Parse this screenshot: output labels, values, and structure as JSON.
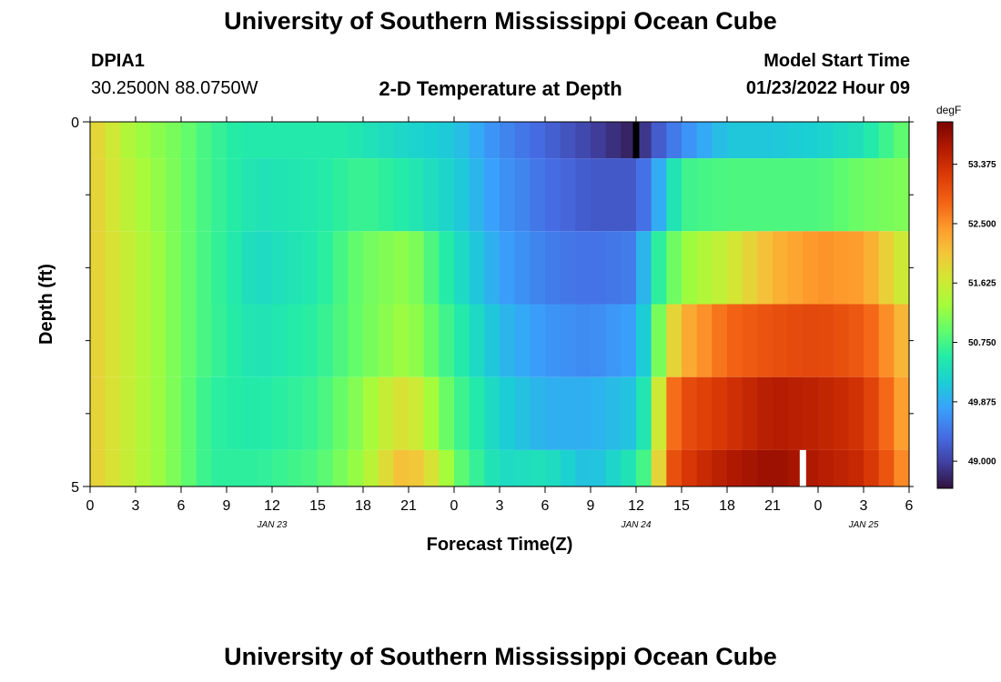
{
  "header": {
    "title": "University of Southern Mississippi Ocean Cube",
    "station": "DPIA1",
    "coords": "30.2500N  88.0750W",
    "start_label": "Model Start Time",
    "start_value": "01/23/2022 Hour 09"
  },
  "footer": {
    "title": "University of Southern Mississippi Ocean Cube"
  },
  "chart_data": {
    "type": "heatmap",
    "title": "2-D Temperature at Depth",
    "xlabel": "Forecast Time(Z)",
    "ylabel": "Depth (ft)",
    "colorbar_label": "degF",
    "colorbar_ticks": [
      49.0,
      49.875,
      50.75,
      51.625,
      52.5,
      53.375
    ],
    "colorbar_tick_labels": [
      "49.000",
      "49.875",
      "50.750",
      "51.625",
      "52.500",
      "53.375"
    ],
    "value_range": [
      48.6,
      54.0
    ],
    "x_ticks": [
      0,
      3,
      6,
      9,
      12,
      15,
      18,
      21,
      24,
      27,
      30,
      33,
      36,
      39,
      42,
      45,
      48,
      51,
      54
    ],
    "x_tick_labels": [
      "0",
      "3",
      "6",
      "9",
      "12",
      "15",
      "18",
      "21",
      "0",
      "3",
      "6",
      "9",
      "12",
      "15",
      "18",
      "21",
      "0",
      "3",
      "6"
    ],
    "x_range": [
      0,
      54
    ],
    "date_labels": [
      {
        "hour": 12,
        "text": "JAN 23"
      },
      {
        "hour": 36,
        "text": "JAN 24"
      },
      {
        "hour": 51,
        "text": "JAN 25"
      }
    ],
    "y_range": [
      0,
      5
    ],
    "y_tick_labels": [
      "0",
      "5"
    ],
    "layer_bounds": [
      0,
      0.5,
      1.5,
      2.5,
      3.5,
      4.5,
      5
    ],
    "layer_profiles": [
      [
        [
          0,
          52.0
        ],
        [
          3,
          51.3
        ],
        [
          6,
          51.0
        ],
        [
          8,
          50.7
        ],
        [
          10,
          50.5
        ],
        [
          14,
          50.5
        ],
        [
          17,
          50.5
        ],
        [
          20,
          50.3
        ],
        [
          24,
          50.1
        ],
        [
          27,
          49.6
        ],
        [
          30,
          49.3
        ],
        [
          33,
          49.0
        ],
        [
          35,
          48.8
        ],
        [
          36,
          48.7
        ],
        [
          37,
          49.1
        ],
        [
          39,
          49.6
        ],
        [
          42,
          50.1
        ],
        [
          45,
          50.1
        ],
        [
          48,
          50.2
        ],
        [
          51,
          50.4
        ],
        [
          53,
          50.8
        ],
        [
          54,
          51.0
        ]
      ],
      [
        [
          0,
          52.0
        ],
        [
          3,
          51.4
        ],
        [
          6,
          51.0
        ],
        [
          8,
          50.7
        ],
        [
          11,
          50.4
        ],
        [
          15,
          50.5
        ],
        [
          18,
          50.7
        ],
        [
          21,
          50.5
        ],
        [
          24,
          50.2
        ],
        [
          27,
          49.7
        ],
        [
          30,
          49.4
        ],
        [
          33,
          49.2
        ],
        [
          36,
          49.2
        ],
        [
          37,
          49.6
        ],
        [
          39,
          50.7
        ],
        [
          42,
          50.8
        ],
        [
          45,
          50.8
        ],
        [
          48,
          50.8
        ],
        [
          51,
          51.0
        ],
        [
          54,
          51.1
        ]
      ],
      [
        [
          0,
          52.0
        ],
        [
          3,
          51.5
        ],
        [
          6,
          51.0
        ],
        [
          8,
          50.7
        ],
        [
          11,
          50.3
        ],
        [
          15,
          50.5
        ],
        [
          18,
          51.0
        ],
        [
          21,
          51.2
        ],
        [
          24,
          50.4
        ],
        [
          27,
          49.8
        ],
        [
          30,
          49.5
        ],
        [
          33,
          49.4
        ],
        [
          36,
          49.5
        ],
        [
          37,
          50.4
        ],
        [
          39,
          51.2
        ],
        [
          42,
          51.6
        ],
        [
          45,
          52.2
        ],
        [
          48,
          52.5
        ],
        [
          51,
          52.4
        ],
        [
          53,
          51.8
        ],
        [
          54,
          51.5
        ]
      ],
      [
        [
          0,
          52.0
        ],
        [
          3,
          51.5
        ],
        [
          6,
          51.0
        ],
        [
          8,
          50.7
        ],
        [
          11,
          50.4
        ],
        [
          15,
          50.6
        ],
        [
          18,
          51.0
        ],
        [
          21,
          51.3
        ],
        [
          24,
          50.6
        ],
        [
          27,
          50.0
        ],
        [
          30,
          49.7
        ],
        [
          33,
          49.6
        ],
        [
          36,
          49.8
        ],
        [
          37,
          50.5
        ],
        [
          38,
          51.6
        ],
        [
          39,
          52.2
        ],
        [
          42,
          52.8
        ],
        [
          45,
          53.0
        ],
        [
          48,
          53.1
        ],
        [
          51,
          52.9
        ],
        [
          53,
          52.4
        ],
        [
          54,
          52.0
        ]
      ],
      [
        [
          0,
          52.0
        ],
        [
          3,
          51.5
        ],
        [
          6,
          51.0
        ],
        [
          8,
          50.6
        ],
        [
          11,
          50.5
        ],
        [
          15,
          50.7
        ],
        [
          18,
          51.2
        ],
        [
          20,
          51.7
        ],
        [
          21,
          51.8
        ],
        [
          24,
          50.8
        ],
        [
          27,
          50.2
        ],
        [
          30,
          49.9
        ],
        [
          33,
          49.9
        ],
        [
          36,
          50.1
        ],
        [
          37,
          50.8
        ],
        [
          38,
          52.5
        ],
        [
          39,
          53.0
        ],
        [
          42,
          53.3
        ],
        [
          45,
          53.6
        ],
        [
          48,
          53.5
        ],
        [
          51,
          53.3
        ],
        [
          53,
          52.6
        ],
        [
          54,
          52.2
        ]
      ],
      [
        [
          0,
          52.0
        ],
        [
          3,
          51.5
        ],
        [
          6,
          51.0
        ],
        [
          8,
          50.6
        ],
        [
          11,
          50.6
        ],
        [
          15,
          50.8
        ],
        [
          18,
          51.3
        ],
        [
          20,
          52.0
        ],
        [
          21,
          52.2
        ],
        [
          23,
          51.6
        ],
        [
          24,
          51.0
        ],
        [
          27,
          50.3
        ],
        [
          30,
          50.4
        ],
        [
          33,
          50.0
        ],
        [
          36,
          50.5
        ],
        [
          37,
          51.0
        ],
        [
          38,
          52.8
        ],
        [
          39,
          53.2
        ],
        [
          42,
          53.6
        ],
        [
          45,
          53.8
        ],
        [
          48,
          53.6
        ],
        [
          51,
          53.4
        ],
        [
          53,
          52.8
        ],
        [
          54,
          52.3
        ]
      ]
    ],
    "marker_black": {
      "hour": 36,
      "top_depth": 0,
      "bottom_depth": 0.5
    },
    "marker_white": {
      "hour": 47,
      "top_depth": 4.5,
      "bottom_depth": 5
    },
    "colors": {
      "frame": "#000000",
      "background": "#ffffff",
      "marker_black": "#000000",
      "marker_white": "#ffffff"
    }
  }
}
